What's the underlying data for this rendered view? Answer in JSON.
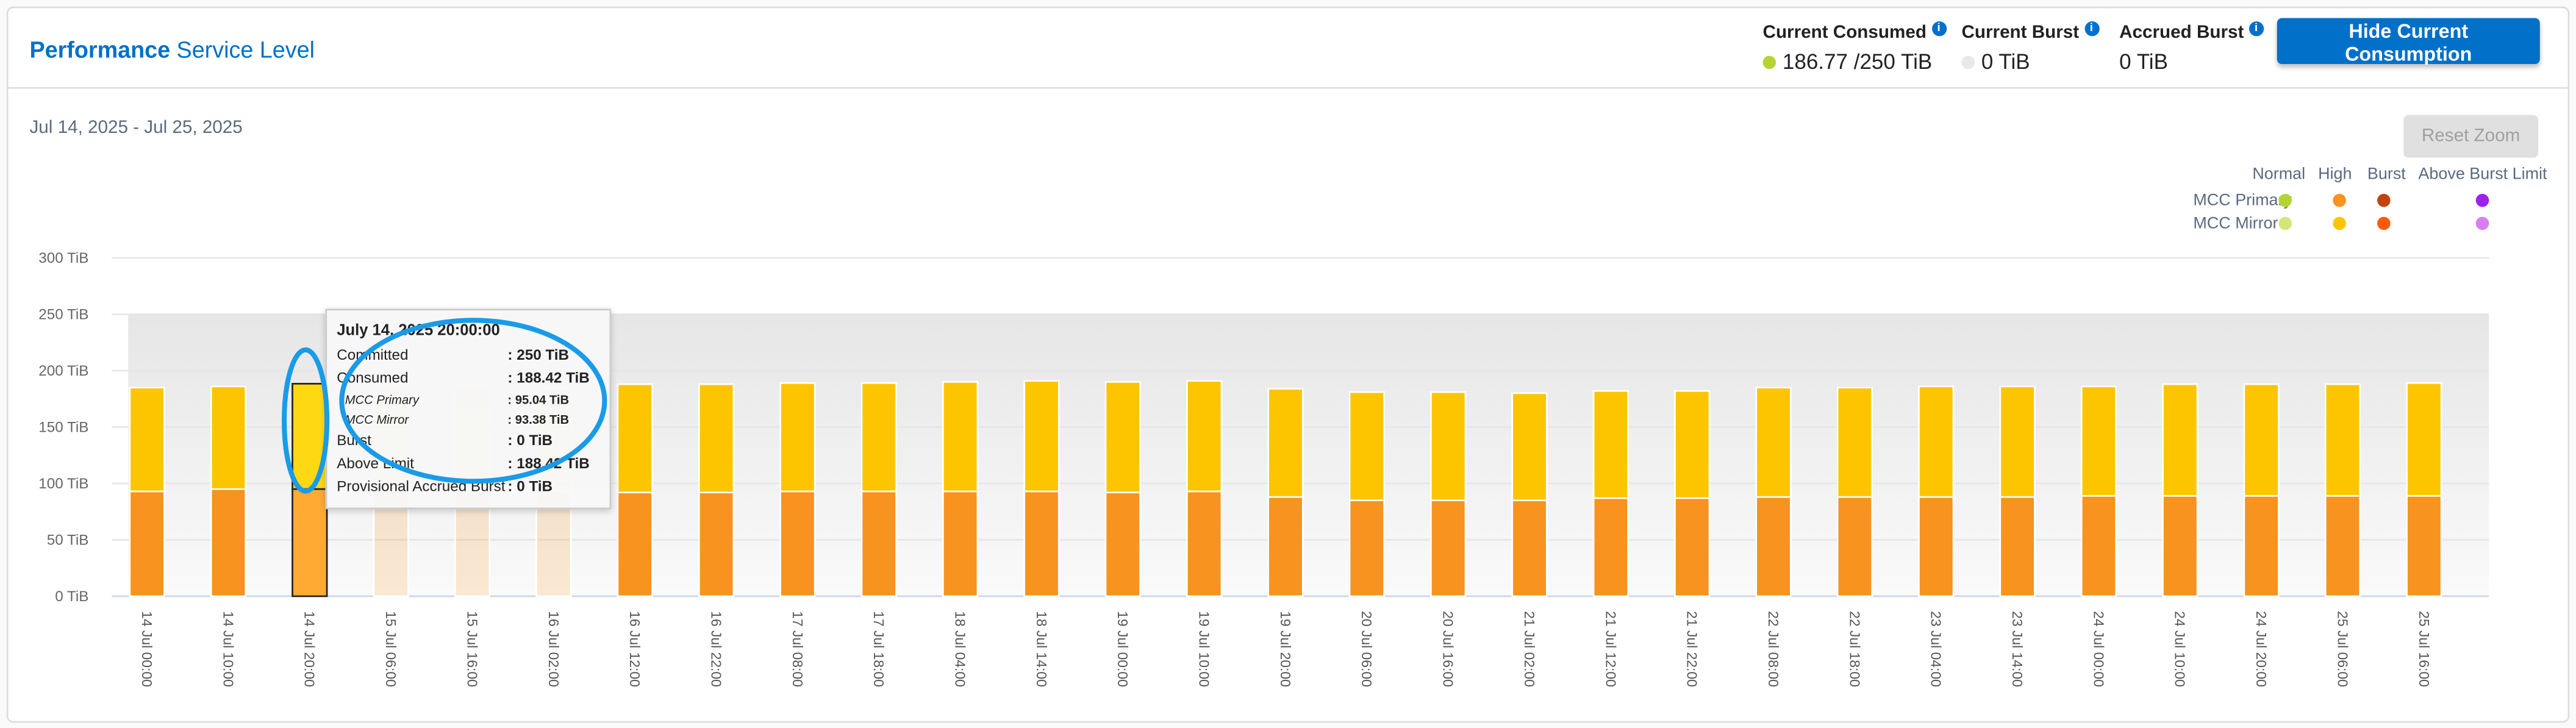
{
  "header": {
    "title_bold": "Performance",
    "title_rest": "Service Level",
    "stats": [
      {
        "label": "Current Consumed",
        "value": "186.77 /250 TiB",
        "dot_color": "#b5d334"
      },
      {
        "label": "Current Burst",
        "value": "0 TiB",
        "dot_color": "#e8e8e8"
      },
      {
        "label": "Accrued Burst",
        "value": "0 TiB"
      }
    ],
    "info_icon": "i",
    "hide_button": "Hide Current Consumption"
  },
  "date_range": "Jul 14, 2025 - Jul 25, 2025",
  "reset_zoom": "Reset Zoom",
  "legend": {
    "columns": [
      "Normal",
      "High",
      "Burst",
      "Above Burst Limit"
    ],
    "rows": [
      {
        "label": "MCC Primary",
        "colors": [
          "#b5d334",
          "#f7931e",
          "#c1440e",
          "#a020f0"
        ]
      },
      {
        "label": "MCC Mirror",
        "colors": [
          "#d4e67a",
          "#fdc500",
          "#ff5a0a",
          "#d97ef2"
        ]
      }
    ]
  },
  "tooltip": {
    "title": "July 14, 2025 20:00:00",
    "rows": [
      {
        "label": "Committed",
        "value": ": 250 TiB"
      },
      {
        "label": "Consumed",
        "value": ": 188.42 TiB"
      },
      {
        "label": "MCC Primary",
        "value": ": 95.04 TiB"
      },
      {
        "label": "MCC Mirror",
        "value": ": 93.38 TiB"
      },
      {
        "label": "Burst",
        "value": ": 0 TiB"
      },
      {
        "label": "Above Limit",
        "value": ": 188.42 TiB"
      },
      {
        "label": "Provisional Accrued Burst",
        "value": ": 0 TiB"
      }
    ]
  },
  "annotation_color": "#1a9be8",
  "chart_data": {
    "type": "bar",
    "stacked": true,
    "ylim": [
      0,
      300
    ],
    "yticks": [
      "0 TiB",
      "50 TiB",
      "100 TiB",
      "150 TiB",
      "200 TiB",
      "250 TiB",
      "300 TiB"
    ],
    "ytick_values": [
      0,
      50,
      100,
      150,
      200,
      250,
      300
    ],
    "committed": 250,
    "grid": true,
    "highlighted_index": 2,
    "categories": [
      "14 Jul 00:00",
      "14 Jul 10:00",
      "14 Jul 20:00",
      "15 Jul 06:00",
      "15 Jul 16:00",
      "16 Jul 02:00",
      "16 Jul 12:00",
      "16 Jul 22:00",
      "17 Jul 08:00",
      "17 Jul 18:00",
      "18 Jul 04:00",
      "18 Jul 14:00",
      "19 Jul 00:00",
      "19 Jul 10:00",
      "19 Jul 20:00",
      "20 Jul 06:00",
      "20 Jul 16:00",
      "21 Jul 02:00",
      "21 Jul 12:00",
      "21 Jul 22:00",
      "22 Jul 08:00",
      "22 Jul 18:00",
      "23 Jul 04:00",
      "23 Jul 14:00",
      "24 Jul 00:00",
      "24 Jul 10:00",
      "24 Jul 20:00",
      "25 Jul 06:00",
      "25 Jul 16:00"
    ],
    "series": [
      {
        "name": "MCC Primary",
        "color": "#f7931e",
        "values": [
          93,
          95,
          95.04,
          93,
          93,
          93,
          92,
          92,
          93,
          93,
          93,
          93,
          92,
          93,
          88,
          85,
          85,
          85,
          87,
          87,
          88,
          88,
          88,
          88,
          89,
          89,
          89,
          89,
          89
        ]
      },
      {
        "name": "MCC Mirror",
        "color": "#fdc500",
        "values": [
          92,
          91,
          93.38,
          93,
          93,
          91,
          96,
          96,
          96,
          96,
          97,
          98,
          98,
          98,
          96,
          96,
          96,
          95,
          95,
          95,
          97,
          97,
          98,
          98,
          97,
          99,
          99,
          99,
          100
        ]
      }
    ]
  }
}
